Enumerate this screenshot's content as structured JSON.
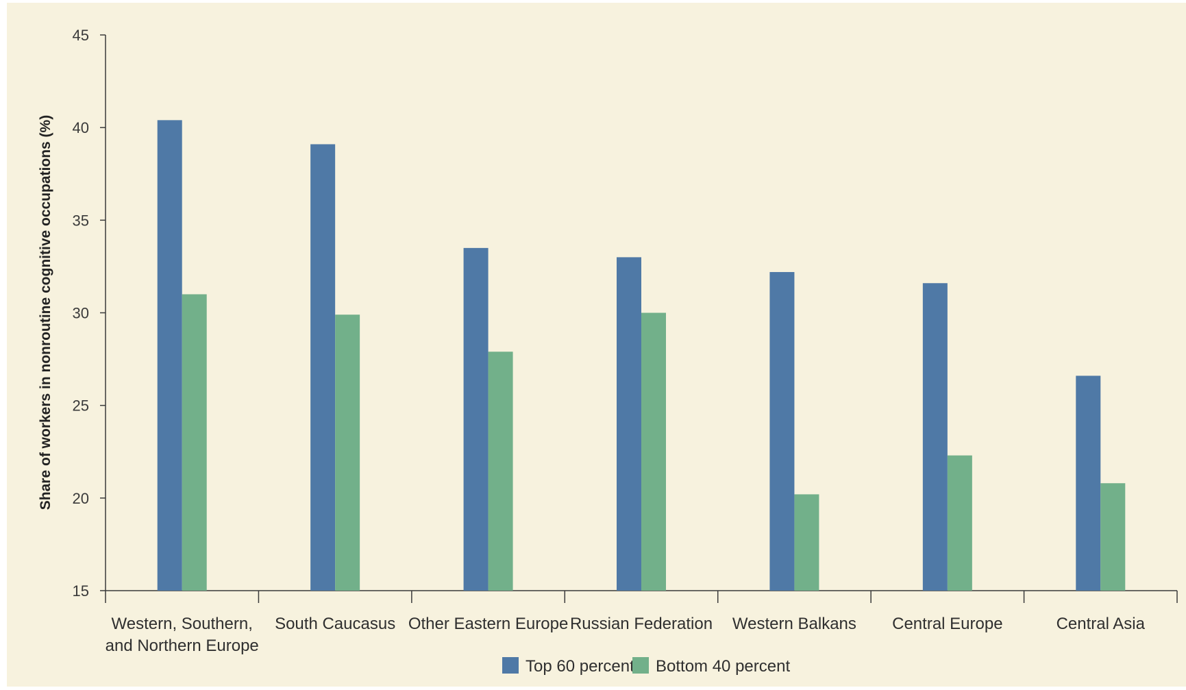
{
  "chart_data": {
    "type": "bar",
    "title": "",
    "xlabel": "",
    "ylabel": "Share of workers in nonroutine cognitive occupations (%)",
    "ylim": [
      15,
      45
    ],
    "yticks": [
      15,
      20,
      25,
      30,
      35,
      40,
      45
    ],
    "categories": [
      [
        "Western, Southern,",
        "and Northern Europe"
      ],
      [
        "South Caucasus"
      ],
      [
        "Other Eastern Europe"
      ],
      [
        "Russian Federation"
      ],
      [
        "Western Balkans"
      ],
      [
        "Central Europe"
      ],
      [
        "Central Asia"
      ]
    ],
    "series": [
      {
        "name": "Top 60 percent",
        "color": "#4f79a6",
        "values": [
          40.4,
          39.1,
          33.5,
          33.0,
          32.2,
          31.6,
          26.6
        ]
      },
      {
        "name": "Bottom 40 percent",
        "color": "#72b08a",
        "values": [
          31.0,
          29.9,
          27.9,
          30.0,
          20.2,
          22.3,
          20.8
        ]
      }
    ],
    "grid": false,
    "legend_position": "bottom-center"
  },
  "colors": {
    "background": "#f7f2de",
    "axis": "#3a3a3a"
  }
}
